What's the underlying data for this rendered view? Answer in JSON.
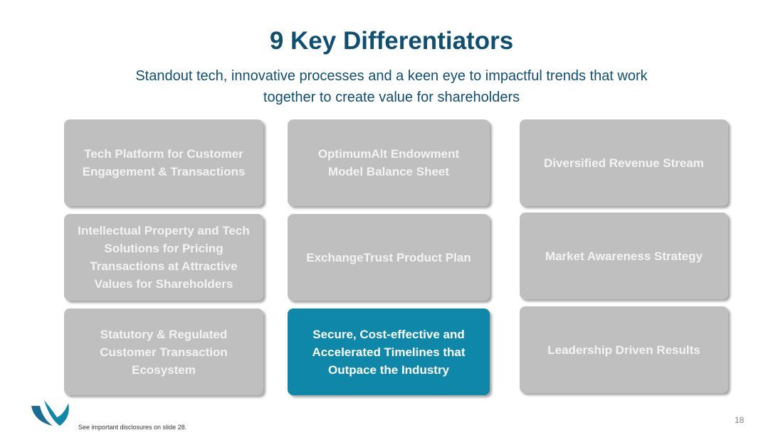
{
  "header": {
    "title": "9 Key Differentiators",
    "subtitle": "Standout tech, innovative processes and a keen eye to impactful trends that work together to create value for shareholders"
  },
  "cards": [
    {
      "label": "Tech Platform for Customer Engagement & Transactions",
      "highlighted": false
    },
    {
      "label": "OptimumAlt Endowment Model Balance Sheet",
      "highlighted": false
    },
    {
      "label": "Diversified Revenue Stream",
      "highlighted": false
    },
    {
      "label": "Intellectual Property and Tech Solutions for Pricing Transactions at Attractive Values for Shareholders",
      "highlighted": false
    },
    {
      "label": "ExchangeTrust Product Plan",
      "highlighted": false
    },
    {
      "label": "Market Awareness Strategy",
      "highlighted": false
    },
    {
      "label": "Statutory & Regulated Customer Transaction Ecosystem",
      "highlighted": false
    },
    {
      "label": "Secure, Cost-effective and Accelerated Timelines that Outpace the Industry",
      "highlighted": true
    },
    {
      "label": "Leadership Driven Results",
      "highlighted": false
    }
  ],
  "footer": {
    "disclosure": "See important disclosures on slide 28.",
    "page_number": "18"
  }
}
